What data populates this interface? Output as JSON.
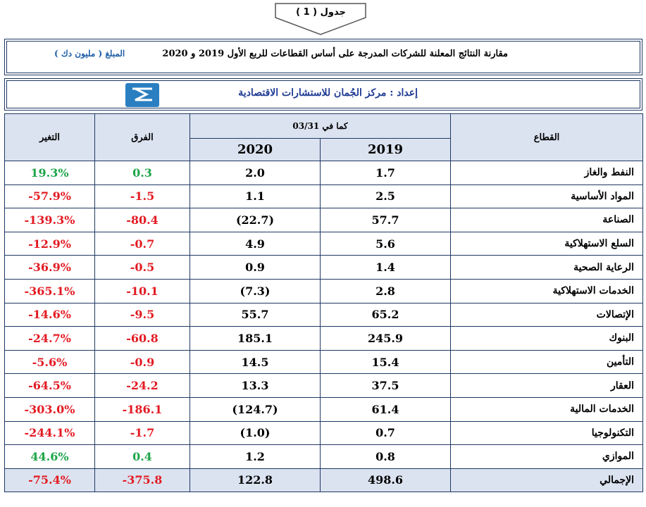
{
  "header": {
    "table_label": "جدول ( 1 )",
    "title": "مقارنة النتائج المعلنة للشركات المدرجة على أساس القطاعات للربع الأول 2019 و 2020",
    "amount_unit": "المبلغ ( مليون دك )",
    "prepared_by": "إعداد : مركز الجُمان للاستشارات الاقتصادية"
  },
  "columns": {
    "sector": "القطاع",
    "as_of": "كما في 03/31",
    "year_2019": "2019",
    "year_2020": "2020",
    "difference": "الفرق",
    "change": "التغير"
  },
  "rows": [
    {
      "sector": "النفط والغاز",
      "v2019": "1.7",
      "v2020": "2.0",
      "diff": "0.3",
      "change": "19.3%",
      "positive": true
    },
    {
      "sector": "المواد الأساسية",
      "v2019": "2.5",
      "v2020": "1.1",
      "diff": "-1.5",
      "change": "-57.9%",
      "positive": false
    },
    {
      "sector": "الصناعة",
      "v2019": "57.7",
      "v2020": "(22.7)",
      "diff": "-80.4",
      "change": "-139.3%",
      "positive": false
    },
    {
      "sector": "السلع الاستهلاكية",
      "v2019": "5.6",
      "v2020": "4.9",
      "diff": "-0.7",
      "change": "-12.9%",
      "positive": false
    },
    {
      "sector": "الرعاية الصحية",
      "v2019": "1.4",
      "v2020": "0.9",
      "diff": "-0.5",
      "change": "-36.9%",
      "positive": false
    },
    {
      "sector": "الخدمات الاستهلاكية",
      "v2019": "2.8",
      "v2020": "(7.3)",
      "diff": "-10.1",
      "change": "-365.1%",
      "positive": false
    },
    {
      "sector": "الإتصالات",
      "v2019": "65.2",
      "v2020": "55.7",
      "diff": "-9.5",
      "change": "-14.6%",
      "positive": false
    },
    {
      "sector": "البنوك",
      "v2019": "245.9",
      "v2020": "185.1",
      "diff": "-60.8",
      "change": "-24.7%",
      "positive": false
    },
    {
      "sector": "التأمين",
      "v2019": "15.4",
      "v2020": "14.5",
      "diff": "-0.9",
      "change": "-5.6%",
      "positive": false
    },
    {
      "sector": "العقار",
      "v2019": "37.5",
      "v2020": "13.3",
      "diff": "-24.2",
      "change": "-64.5%",
      "positive": false
    },
    {
      "sector": "الخدمات المالية",
      "v2019": "61.4",
      "v2020": "(124.7)",
      "diff": "-186.1",
      "change": "-303.0%",
      "positive": false
    },
    {
      "sector": "التكنولوجيا",
      "v2019": "0.7",
      "v2020": "(1.0)",
      "diff": "-1.7",
      "change": "-244.1%",
      "positive": false
    },
    {
      "sector": "الموازي",
      "v2019": "0.8",
      "v2020": "1.2",
      "diff": "0.4",
      "change": "44.6%",
      "positive": true
    }
  ],
  "total": {
    "sector": "الإجمالي",
    "v2019": "498.6",
    "v2020": "122.8",
    "diff": "-375.8",
    "change": "-75.4%"
  },
  "colors": {
    "positive": "#1ea54a",
    "negative": "#e31b23",
    "header_bg": "#dbe3f0",
    "border": "#1f3864"
  }
}
